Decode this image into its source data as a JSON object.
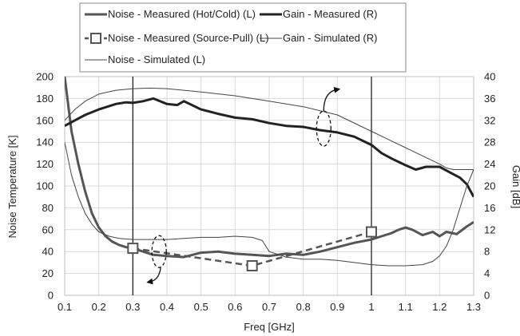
{
  "chart_data": {
    "type": "line",
    "title": "",
    "xlabel": "Freq [GHz]",
    "ylabel_left": "Noise Temperature [K]",
    "ylabel_right": "Gain [dB]",
    "xlim": [
      0.1,
      1.3
    ],
    "ylim_left": [
      0,
      200
    ],
    "ylim_right": [
      0,
      40
    ],
    "x_ticks": [
      "0.1",
      "0.2",
      "0.3",
      "0.4",
      "0.5",
      "0.6",
      "0.7",
      "0.8",
      "0.9",
      "1",
      "1.1",
      "1.2",
      "1.3"
    ],
    "y_left_ticks": [
      "0",
      "20",
      "40",
      "60",
      "80",
      "100",
      "120",
      "140",
      "160",
      "180",
      "200"
    ],
    "y_right_ticks": [
      "0",
      "4",
      "8",
      "12",
      "16",
      "20",
      "24",
      "28",
      "32",
      "36",
      "40"
    ],
    "grid": true,
    "legend_position": "top",
    "vertical_markers": [
      0.3,
      1.0
    ],
    "series": [
      {
        "name": "Noise - Measured (Hot/Cold) (L)",
        "axis": "left",
        "color": "#555555",
        "x": [
          0.1,
          0.12,
          0.14,
          0.16,
          0.18,
          0.2,
          0.22,
          0.24,
          0.26,
          0.28,
          0.3,
          0.33,
          0.36,
          0.4,
          0.45,
          0.5,
          0.55,
          0.6,
          0.65,
          0.7,
          0.75,
          0.8,
          0.85,
          0.9,
          0.95,
          1.0,
          1.03,
          1.06,
          1.08,
          1.1,
          1.12,
          1.15,
          1.18,
          1.2,
          1.22,
          1.25,
          1.28,
          1.3
        ],
        "y": [
          200,
          150,
          120,
          95,
          75,
          62,
          54,
          49,
          46,
          44,
          43,
          40,
          37,
          36,
          35,
          39,
          40,
          38,
          37,
          36,
          38,
          37,
          40,
          44,
          48,
          51,
          54,
          57,
          60,
          62,
          60,
          55,
          58,
          54,
          58,
          56,
          63,
          67
        ]
      },
      {
        "name": "Gain - Measured (R)",
        "axis": "right",
        "color": "#222222",
        "x": [
          0.1,
          0.13,
          0.16,
          0.2,
          0.25,
          0.28,
          0.3,
          0.33,
          0.36,
          0.4,
          0.43,
          0.45,
          0.5,
          0.55,
          0.6,
          0.65,
          0.7,
          0.75,
          0.8,
          0.85,
          0.9,
          0.95,
          1.0,
          1.03,
          1.06,
          1.1,
          1.13,
          1.16,
          1.2,
          1.23,
          1.26,
          1.28,
          1.3
        ],
        "y": [
          31,
          32,
          33,
          34,
          35,
          35.3,
          35.2,
          35.5,
          36,
          35,
          34.8,
          35.5,
          34,
          33.2,
          32.5,
          32.2,
          31.5,
          31,
          30.8,
          30.2,
          29.8,
          29,
          27.5,
          26,
          25,
          23.8,
          23,
          23.5,
          23.5,
          22.5,
          21.5,
          20.3,
          18
        ]
      },
      {
        "name": "Noise - Measured (Source-Pull) (L)",
        "axis": "left",
        "color": "#555555",
        "x": [
          0.3,
          0.65,
          1.0
        ],
        "y": [
          43,
          27,
          58
        ]
      },
      {
        "name": "Gain - Simulated (R)",
        "axis": "right",
        "color": "#444444",
        "x": [
          0.1,
          0.13,
          0.16,
          0.2,
          0.25,
          0.3,
          0.35,
          0.4,
          0.45,
          0.5,
          0.6,
          0.7,
          0.8,
          0.9,
          1.0,
          1.05,
          1.1,
          1.15,
          1.2,
          1.22,
          1.24,
          1.26,
          1.28,
          1.3
        ],
        "y": [
          32,
          34,
          35.5,
          36.8,
          37.5,
          37.8,
          37.9,
          37.8,
          37.5,
          37.2,
          36.5,
          35.5,
          34.5,
          33,
          30,
          28.5,
          27,
          25.5,
          24,
          23.3,
          23,
          23,
          23,
          23
        ]
      },
      {
        "name": "Noise - Simulated (L)",
        "axis": "left",
        "color": "#444444",
        "x": [
          0.1,
          0.12,
          0.14,
          0.16,
          0.18,
          0.2,
          0.23,
          0.26,
          0.3,
          0.35,
          0.4,
          0.45,
          0.5,
          0.55,
          0.6,
          0.65,
          0.68,
          0.7,
          0.75,
          0.8,
          0.85,
          0.9,
          1.0,
          1.05,
          1.1,
          1.15,
          1.18,
          1.2,
          1.22,
          1.24,
          1.26,
          1.28,
          1.3
        ],
        "y": [
          140,
          110,
          90,
          75,
          65,
          58,
          54,
          52,
          51,
          51,
          51,
          52,
          53,
          53,
          54,
          53,
          50,
          40,
          35,
          33,
          33,
          32,
          28,
          27,
          27,
          28,
          31,
          36,
          45,
          60,
          80,
          100,
          115
        ]
      }
    ]
  }
}
